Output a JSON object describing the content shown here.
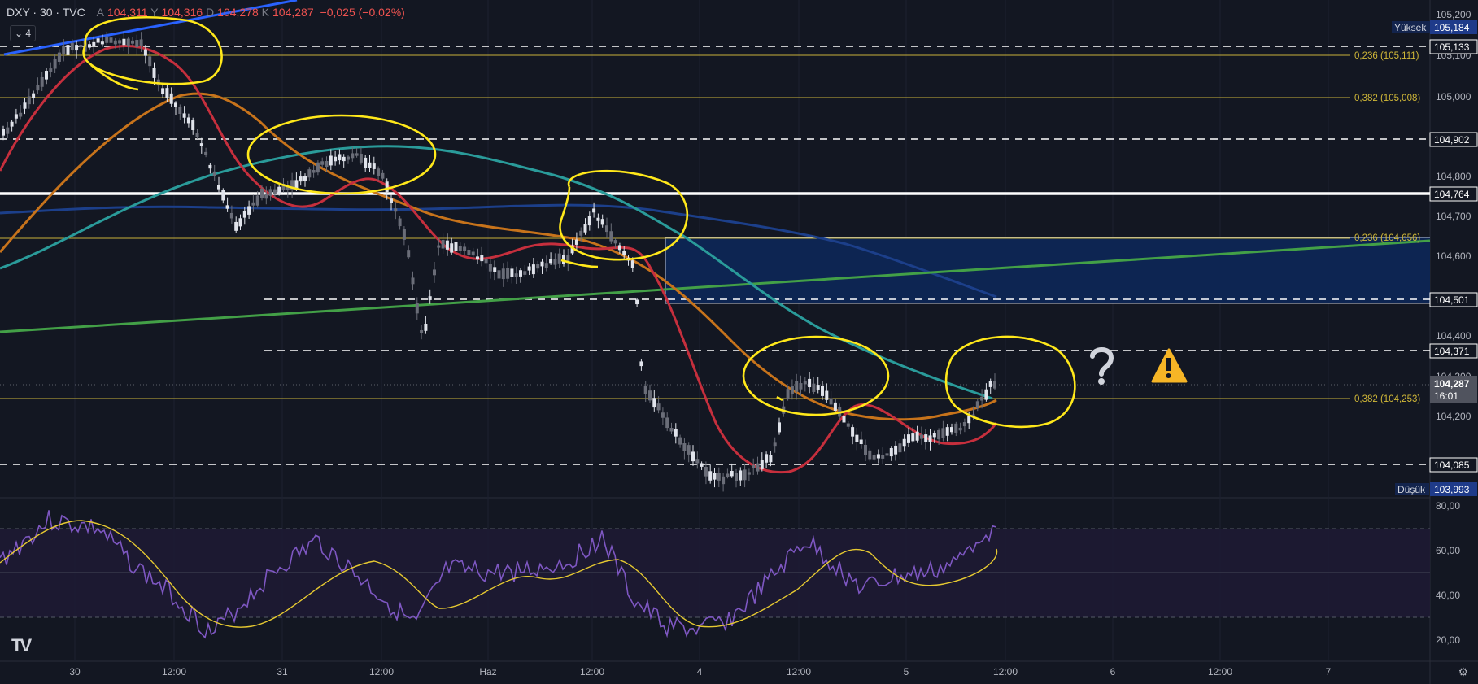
{
  "header": {
    "symbol": "DXY · 30 · TVC",
    "open_label": "A",
    "open": "104,311",
    "high_label": "Y",
    "high": "104,316",
    "low_label": "D",
    "low": "104,278",
    "close_label": "K",
    "close": "104,287",
    "change": "−0,025 (−0,02%)"
  },
  "indicator_collapse": "4",
  "price_axis": {
    "ticks": [
      "105,200",
      "105,100",
      "105,000",
      "104,800",
      "104,700",
      "104,600",
      "104,400",
      "104,300",
      "104,200"
    ],
    "labels": [
      {
        "text": "105,184",
        "kind": "high"
      },
      {
        "text": "105,133",
        "kind": "line"
      },
      {
        "text": "104,902",
        "kind": "line"
      },
      {
        "text": "104,764",
        "kind": "line"
      },
      {
        "text": "104,501",
        "kind": "line"
      },
      {
        "text": "104,371",
        "kind": "line"
      },
      {
        "text": "104,085",
        "kind": "line"
      },
      {
        "text": "103,993",
        "kind": "low"
      }
    ],
    "high_tag": "Yüksek",
    "low_tag": "Düşük",
    "current_price": "104,287",
    "countdown": "16:01"
  },
  "fib_labels": [
    "0,236 (105,111)",
    "0,382 (105,008)",
    "0,236 (104,656)",
    "0,382 (104,253)"
  ],
  "rsi_axis": [
    "80,00",
    "60,00",
    "40,00",
    "20,00"
  ],
  "time_axis": [
    "30",
    "12:00",
    "31",
    "12:00",
    "Haz",
    "12:00",
    "4",
    "12:00",
    "5",
    "12:00",
    "6",
    "12:00",
    "7"
  ],
  "annotations": {
    "question": "?",
    "warning": "!"
  },
  "colors": {
    "background": "#131722",
    "grid": "#1e222d",
    "white_level": "#ffffff",
    "fib": "#c9b23a",
    "ma_red": "#c62f3d",
    "ma_orange": "#c7731b",
    "ma_teal": "#2a9b9a",
    "ma_navy": "#1c3f8a",
    "ma_green": "#43a047",
    "trend_blue": "#2962ff",
    "zone": "#0d2552",
    "circle": "#ffe81a",
    "rsi": "#7e57c2",
    "rsi_ma": "#e6c931"
  },
  "logo": "TV",
  "settings_icon": "gear-icon"
}
